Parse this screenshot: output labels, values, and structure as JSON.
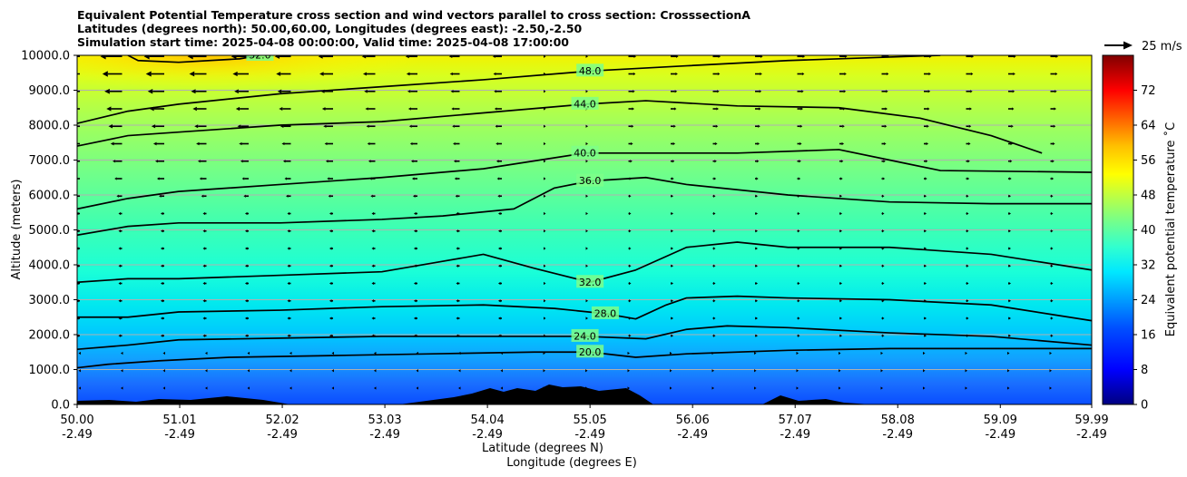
{
  "title_lines": [
    "Equivalent Potential Temperature cross section and wind vectors parallel to cross section: CrosssectionA",
    "Latitudes (degrees north): 50.00,60.00, Longitudes (degrees east): -2.50,-2.50",
    "Simulation start time: 2025-04-08 00:00:00, Valid time: 2025-04-08 17:00:00"
  ],
  "chart_data": {
    "type": "heatmap",
    "subtype": "cross-section contour with wind vectors",
    "xlabel": "Latitude (degrees N)",
    "xlabel2": "Longitude (degrees E)",
    "ylabel": "Altitude (meters)",
    "xlim": [
      50.0,
      59.99
    ],
    "ylim": [
      0,
      10000
    ],
    "grid": "horizontal",
    "x_ticks": [
      {
        "value": 50.0,
        "lat": "50.00",
        "lon": "-2.49"
      },
      {
        "value": 51.01,
        "lat": "51.01",
        "lon": "-2.49"
      },
      {
        "value": 52.02,
        "lat": "52.02",
        "lon": "-2.49"
      },
      {
        "value": 53.03,
        "lat": "53.03",
        "lon": "-2.49"
      },
      {
        "value": 54.04,
        "lat": "54.04",
        "lon": "-2.49"
      },
      {
        "value": 55.05,
        "lat": "55.05",
        "lon": "-2.49"
      },
      {
        "value": 56.06,
        "lat": "56.06",
        "lon": "-2.49"
      },
      {
        "value": 57.07,
        "lat": "57.07",
        "lon": "-2.49"
      },
      {
        "value": 58.08,
        "lat": "58.08",
        "lon": "-2.49"
      },
      {
        "value": 59.09,
        "lat": "59.09",
        "lon": "-2.49"
      },
      {
        "value": 59.99,
        "lat": "59.99",
        "lon": "-2.49"
      }
    ],
    "y_ticks": [
      {
        "value": 0,
        "label": "0.0"
      },
      {
        "value": 1000,
        "label": "1000.0"
      },
      {
        "value": 2000,
        "label": "2000.0"
      },
      {
        "value": 3000,
        "label": "3000.0"
      },
      {
        "value": 4000,
        "label": "4000.0"
      },
      {
        "value": 5000,
        "label": "5000.0"
      },
      {
        "value": 6000,
        "label": "6000.0"
      },
      {
        "value": 7000,
        "label": "7000.0"
      },
      {
        "value": 8000,
        "label": "8000.0"
      },
      {
        "value": 9000,
        "label": "9000.0"
      },
      {
        "value": 10000,
        "label": "10000.0"
      }
    ],
    "colorbar": {
      "label": "Equivalent potential temperature ˚C",
      "range": [
        0,
        80
      ],
      "ticks": [
        {
          "value": 0,
          "label": "0"
        },
        {
          "value": 8,
          "label": "8"
        },
        {
          "value": 16,
          "label": "16"
        },
        {
          "value": 24,
          "label": "24"
        },
        {
          "value": 32,
          "label": "32"
        },
        {
          "value": 40,
          "label": "40"
        },
        {
          "value": 48,
          "label": "48"
        },
        {
          "value": 56,
          "label": "56"
        },
        {
          "value": 64,
          "label": "64"
        },
        {
          "value": 72,
          "label": "72"
        }
      ]
    },
    "quiver_key": {
      "label": "25 m/s"
    },
    "contours": [
      {
        "level": 20.0,
        "label": "20.0",
        "points": [
          [
            50.0,
            1050
          ],
          [
            50.3,
            1150
          ],
          [
            50.8,
            1250
          ],
          [
            51.5,
            1350
          ],
          [
            52.5,
            1400
          ],
          [
            53.5,
            1450
          ],
          [
            54.5,
            1500
          ],
          [
            55.05,
            1500
          ],
          [
            55.5,
            1350
          ],
          [
            56.0,
            1450
          ],
          [
            57.0,
            1550
          ],
          [
            58.0,
            1600
          ],
          [
            59.0,
            1600
          ],
          [
            59.99,
            1600
          ]
        ]
      },
      {
        "level": 24.0,
        "label": "24.0",
        "points": [
          [
            50.0,
            1580
          ],
          [
            50.5,
            1700
          ],
          [
            51.0,
            1850
          ],
          [
            52.0,
            1900
          ],
          [
            53.0,
            1950
          ],
          [
            54.0,
            1950
          ],
          [
            55.0,
            1950
          ],
          [
            55.6,
            1880
          ],
          [
            56.0,
            2150
          ],
          [
            56.4,
            2250
          ],
          [
            57.0,
            2200
          ],
          [
            58.0,
            2050
          ],
          [
            59.0,
            1950
          ],
          [
            59.99,
            1700
          ]
        ]
      },
      {
        "level": 28.0,
        "label": "28.0",
        "points": [
          [
            50.0,
            2500
          ],
          [
            50.5,
            2500
          ],
          [
            51.0,
            2650
          ],
          [
            52.0,
            2700
          ],
          [
            53.0,
            2800
          ],
          [
            54.0,
            2850
          ],
          [
            54.7,
            2750
          ],
          [
            55.2,
            2600
          ],
          [
            55.5,
            2450
          ],
          [
            55.8,
            2850
          ],
          [
            56.0,
            3050
          ],
          [
            56.5,
            3100
          ],
          [
            57.0,
            3050
          ],
          [
            58.0,
            3000
          ],
          [
            59.0,
            2850
          ],
          [
            59.99,
            2400
          ]
        ]
      },
      {
        "level": 32.0,
        "label": "32.0",
        "points": [
          [
            50.0,
            3500
          ],
          [
            50.5,
            3600
          ],
          [
            51.0,
            3600
          ],
          [
            52.0,
            3700
          ],
          [
            53.0,
            3800
          ],
          [
            53.5,
            4050
          ],
          [
            54.0,
            4300
          ],
          [
            54.5,
            3900
          ],
          [
            55.05,
            3500
          ],
          [
            55.5,
            3850
          ],
          [
            56.0,
            4500
          ],
          [
            56.5,
            4650
          ],
          [
            57.0,
            4500
          ],
          [
            58.0,
            4500
          ],
          [
            59.0,
            4300
          ],
          [
            59.99,
            3850
          ]
        ]
      },
      {
        "level": 36.0,
        "label": "36.0",
        "points": [
          [
            50.0,
            4850
          ],
          [
            50.5,
            5100
          ],
          [
            51.0,
            5200
          ],
          [
            52.0,
            5200
          ],
          [
            53.0,
            5300
          ],
          [
            53.6,
            5400
          ],
          [
            54.3,
            5600
          ],
          [
            54.7,
            6200
          ],
          [
            55.05,
            6400
          ],
          [
            55.6,
            6500
          ],
          [
            56.0,
            6300
          ],
          [
            57.0,
            6000
          ],
          [
            58.0,
            5800
          ],
          [
            59.0,
            5750
          ],
          [
            59.99,
            5750
          ]
        ]
      },
      {
        "level": 40.0,
        "label": "40.0",
        "points": [
          [
            50.0,
            5600
          ],
          [
            50.5,
            5900
          ],
          [
            51.0,
            6100
          ],
          [
            52.0,
            6300
          ],
          [
            53.0,
            6500
          ],
          [
            54.0,
            6750
          ],
          [
            55.0,
            7200
          ],
          [
            55.6,
            7200
          ],
          [
            56.5,
            7200
          ],
          [
            57.5,
            7300
          ],
          [
            58.0,
            7000
          ],
          [
            58.5,
            6700
          ],
          [
            59.99,
            6650
          ]
        ]
      },
      {
        "level": 44.0,
        "label": "44.0",
        "points": [
          [
            50.0,
            7400
          ],
          [
            50.5,
            7700
          ],
          [
            51.0,
            7800
          ],
          [
            52.0,
            8000
          ],
          [
            53.0,
            8100
          ],
          [
            54.0,
            8350
          ],
          [
            55.0,
            8600
          ],
          [
            55.6,
            8700
          ],
          [
            56.5,
            8550
          ],
          [
            57.5,
            8500
          ],
          [
            58.3,
            8200
          ],
          [
            59.0,
            7700
          ],
          [
            59.5,
            7200
          ]
        ]
      },
      {
        "level": 48.0,
        "label": "48.0",
        "points": [
          [
            50.0,
            8050
          ],
          [
            50.5,
            8400
          ],
          [
            51.0,
            8600
          ],
          [
            52.0,
            8900
          ],
          [
            53.0,
            9100
          ],
          [
            54.0,
            9300
          ],
          [
            55.05,
            9550
          ],
          [
            56.0,
            9700
          ],
          [
            57.0,
            9850
          ],
          [
            58.0,
            9950
          ],
          [
            58.5,
            10000
          ]
        ]
      },
      {
        "level": 52.0,
        "label": "52.0",
        "points": [
          [
            50.5,
            10000
          ],
          [
            50.6,
            9850
          ],
          [
            51.0,
            9800
          ],
          [
            51.6,
            9900
          ],
          [
            51.8,
            10000
          ]
        ]
      }
    ]
  }
}
